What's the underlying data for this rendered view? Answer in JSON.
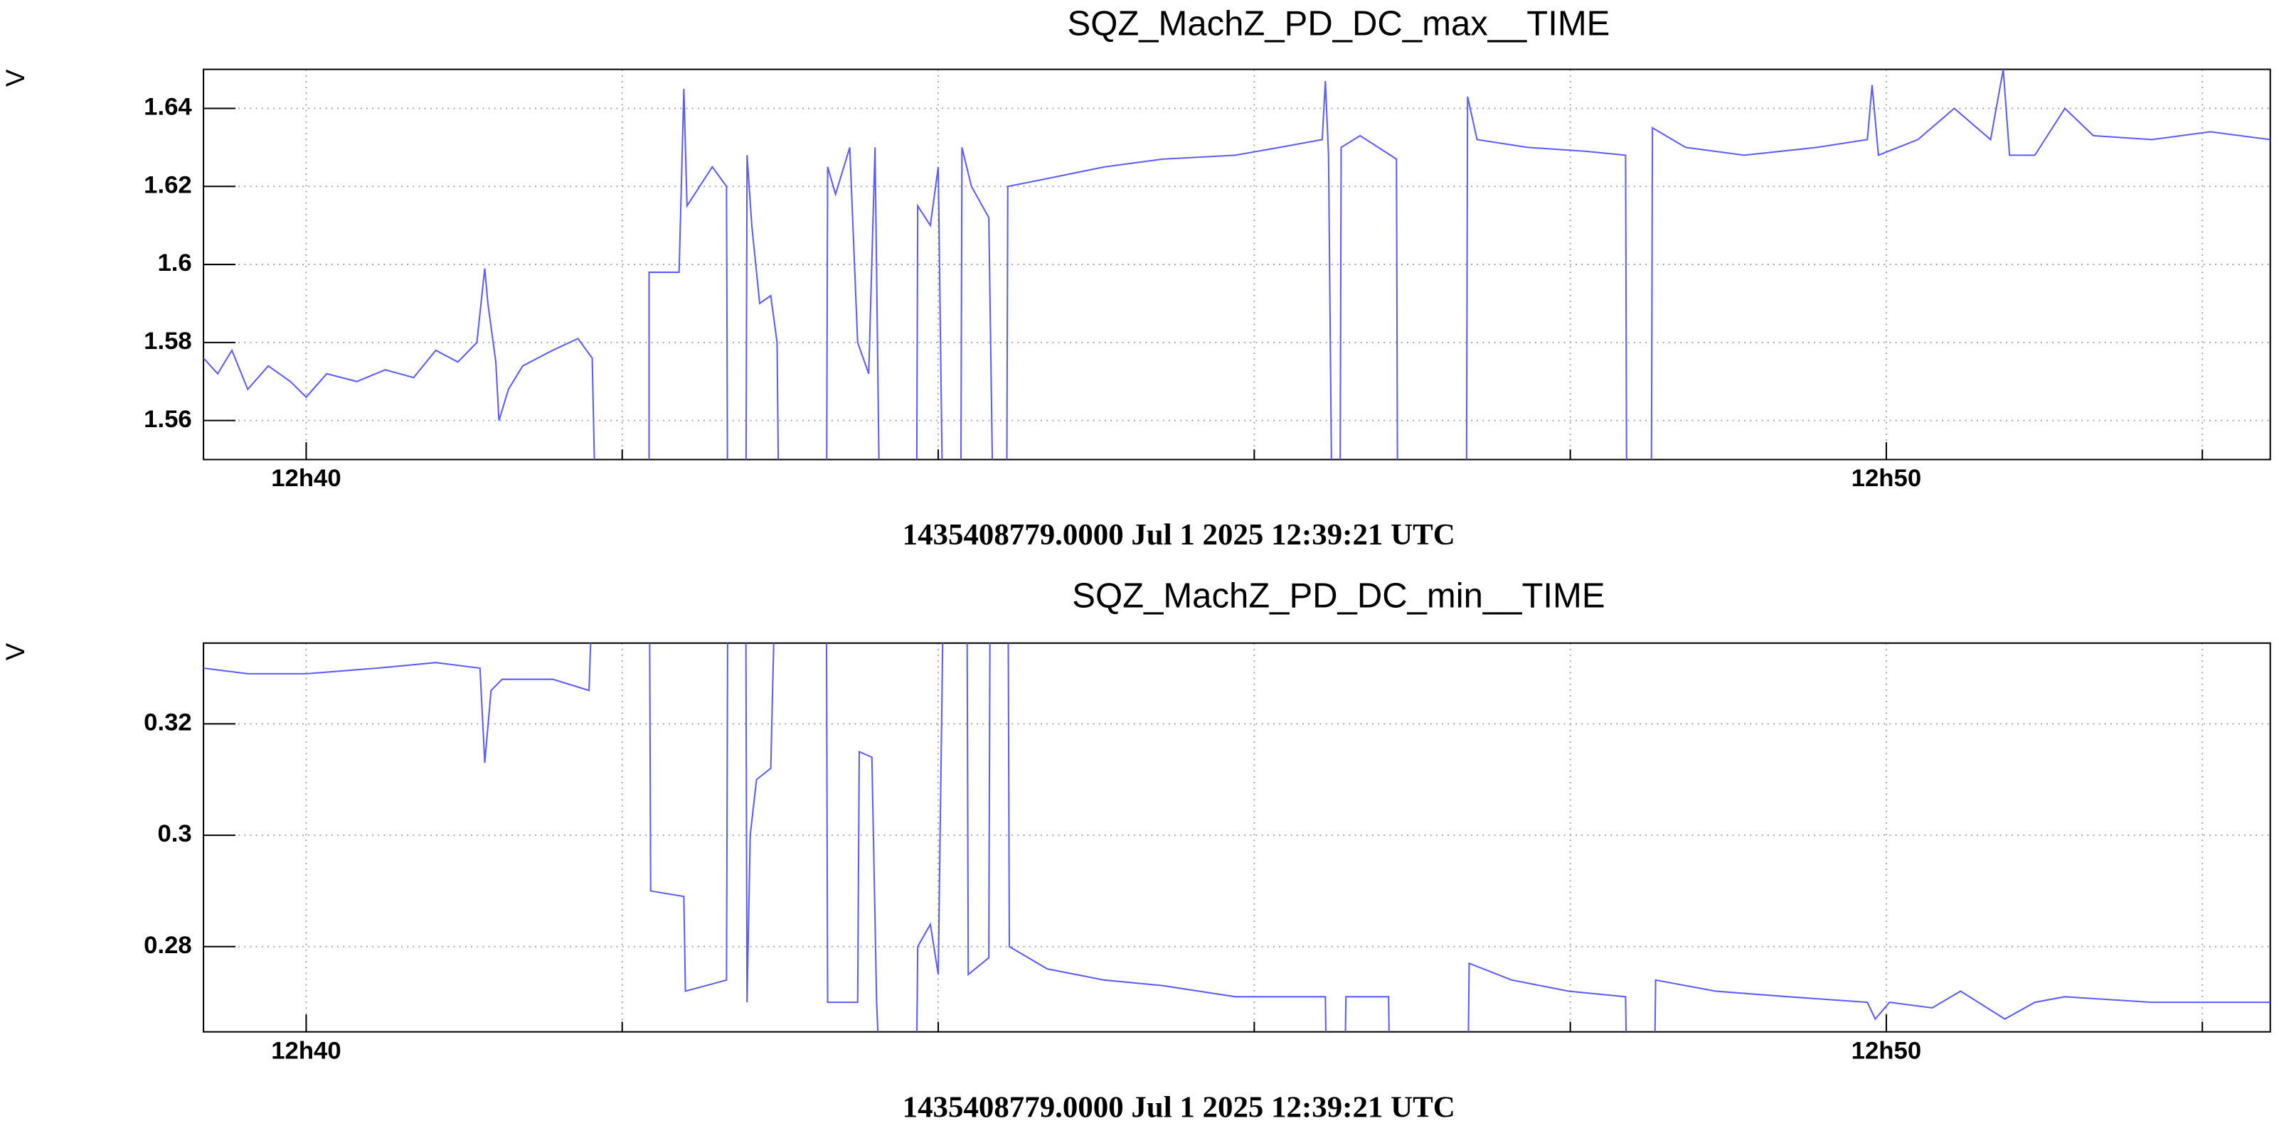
{
  "chart_data": [
    {
      "type": "line",
      "title": "SQZ_MachZ_PD_DC_max__TIME",
      "ylabel": "V",
      "xlabel": "1435408779.0000 Jul 1 2025 12:39:21 UTC",
      "color": "#5b5bff",
      "grid": true,
      "xlim": [
        39.35,
        52.43
      ],
      "ylim": [
        1.55,
        1.65
      ],
      "xticks": [
        {
          "value": 40,
          "label": "12h40"
        },
        {
          "value": 50,
          "label": "12h50"
        }
      ],
      "xticks_minor": [
        42,
        44,
        46,
        48,
        52
      ],
      "yticks": [
        1.56,
        1.58,
        1.6,
        1.62,
        1.64
      ],
      "x": [
        39.35,
        39.44,
        39.53,
        39.63,
        39.76,
        39.9,
        40.0,
        40.13,
        40.32,
        40.5,
        40.68,
        40.82,
        40.96,
        41.08,
        41.13,
        41.15,
        41.2,
        41.22,
        41.28,
        41.37,
        41.56,
        41.72,
        41.81,
        41.85,
        42.17,
        42.17,
        42.36,
        42.39,
        42.41,
        42.57,
        42.66,
        42.67,
        42.78,
        42.79,
        42.82,
        42.87,
        42.94,
        42.98,
        43.0,
        43.29,
        43.3,
        43.35,
        43.44,
        43.49,
        43.56,
        43.6,
        43.64,
        43.86,
        43.87,
        43.95,
        44.0,
        44.04,
        44.14,
        44.15,
        44.21,
        44.32,
        44.36,
        44.43,
        44.44,
        44.69,
        45.05,
        45.42,
        45.88,
        46.16,
        46.43,
        46.45,
        46.47,
        46.5,
        46.54,
        46.55,
        46.67,
        46.9,
        46.91,
        47.34,
        47.35,
        47.41,
        47.73,
        48.1,
        48.35,
        48.36,
        48.51,
        48.52,
        48.73,
        49.1,
        49.56,
        49.88,
        49.91,
        49.95,
        50.2,
        50.43,
        50.66,
        50.74,
        50.78,
        50.94,
        51.13,
        51.31,
        51.68,
        52.05,
        52.43
      ],
      "values": [
        1.576,
        1.572,
        1.578,
        1.568,
        1.574,
        1.57,
        1.566,
        1.572,
        1.57,
        1.573,
        1.571,
        1.578,
        1.575,
        1.58,
        1.599,
        1.59,
        1.575,
        1.56,
        1.568,
        1.574,
        1.578,
        1.581,
        1.576,
        1.5,
        1.5,
        1.598,
        1.598,
        1.645,
        1.615,
        1.625,
        1.62,
        1.5,
        1.5,
        1.628,
        1.61,
        1.59,
        1.592,
        1.58,
        1.5,
        1.5,
        1.625,
        1.618,
        1.63,
        1.58,
        1.572,
        1.63,
        1.5,
        1.5,
        1.615,
        1.61,
        1.625,
        1.5,
        1.5,
        1.63,
        1.62,
        1.612,
        1.5,
        1.5,
        1.62,
        1.622,
        1.625,
        1.627,
        1.628,
        1.63,
        1.632,
        1.647,
        1.628,
        1.5,
        1.5,
        1.63,
        1.633,
        1.627,
        1.5,
        1.5,
        1.643,
        1.632,
        1.63,
        1.629,
        1.628,
        1.5,
        1.5,
        1.635,
        1.63,
        1.628,
        1.63,
        1.632,
        1.646,
        1.628,
        1.632,
        1.64,
        1.632,
        1.65,
        1.628,
        1.628,
        1.64,
        1.633,
        1.632,
        1.634,
        1.632
      ]
    },
    {
      "type": "line",
      "title": "SQZ_MachZ_PD_DC_min__TIME",
      "ylabel": "V",
      "xlabel": "1435408779.0000 Jul 1 2025 12:39:21 UTC",
      "color": "#5b5bff",
      "grid": true,
      "xlim": [
        39.35,
        52.43
      ],
      "ylim": [
        0.2647,
        0.3345
      ],
      "xticks": [
        {
          "value": 40,
          "label": "12h40"
        },
        {
          "value": 50,
          "label": "12h50"
        }
      ],
      "xticks_minor": [
        42,
        44,
        46,
        48,
        52
      ],
      "yticks": [
        0.28,
        0.3,
        0.32
      ],
      "x": [
        39.35,
        39.63,
        40.0,
        40.45,
        40.82,
        41.1,
        41.13,
        41.17,
        41.24,
        41.56,
        41.79,
        41.83,
        42.17,
        42.18,
        42.39,
        42.4,
        42.66,
        42.67,
        42.78,
        42.79,
        42.81,
        42.85,
        42.94,
        42.98,
        43.29,
        43.3,
        43.49,
        43.5,
        43.58,
        43.61,
        43.64,
        43.86,
        43.87,
        43.95,
        44.0,
        44.04,
        44.18,
        44.19,
        44.32,
        44.33,
        44.44,
        44.45,
        44.69,
        45.05,
        45.42,
        45.88,
        46.45,
        46.46,
        46.57,
        46.58,
        46.85,
        46.86,
        47.35,
        47.36,
        47.63,
        47.99,
        48.35,
        48.36,
        48.53,
        48.54,
        48.92,
        49.38,
        49.88,
        49.93,
        50.02,
        50.29,
        50.47,
        50.75,
        50.94,
        51.13,
        51.68,
        52.43
      ],
      "values": [
        0.33,
        0.329,
        0.329,
        0.33,
        0.331,
        0.33,
        0.313,
        0.326,
        0.328,
        0.328,
        0.326,
        0.36,
        0.36,
        0.29,
        0.289,
        0.272,
        0.274,
        0.36,
        0.36,
        0.27,
        0.3,
        0.31,
        0.312,
        0.36,
        0.36,
        0.27,
        0.27,
        0.315,
        0.314,
        0.27,
        0.25,
        0.25,
        0.28,
        0.284,
        0.275,
        0.36,
        0.36,
        0.275,
        0.278,
        0.36,
        0.36,
        0.28,
        0.276,
        0.274,
        0.273,
        0.271,
        0.271,
        0.25,
        0.25,
        0.271,
        0.271,
        0.25,
        0.25,
        0.277,
        0.274,
        0.272,
        0.271,
        0.25,
        0.25,
        0.274,
        0.272,
        0.271,
        0.27,
        0.267,
        0.27,
        0.269,
        0.272,
        0.267,
        0.27,
        0.271,
        0.27,
        0.27
      ]
    }
  ]
}
